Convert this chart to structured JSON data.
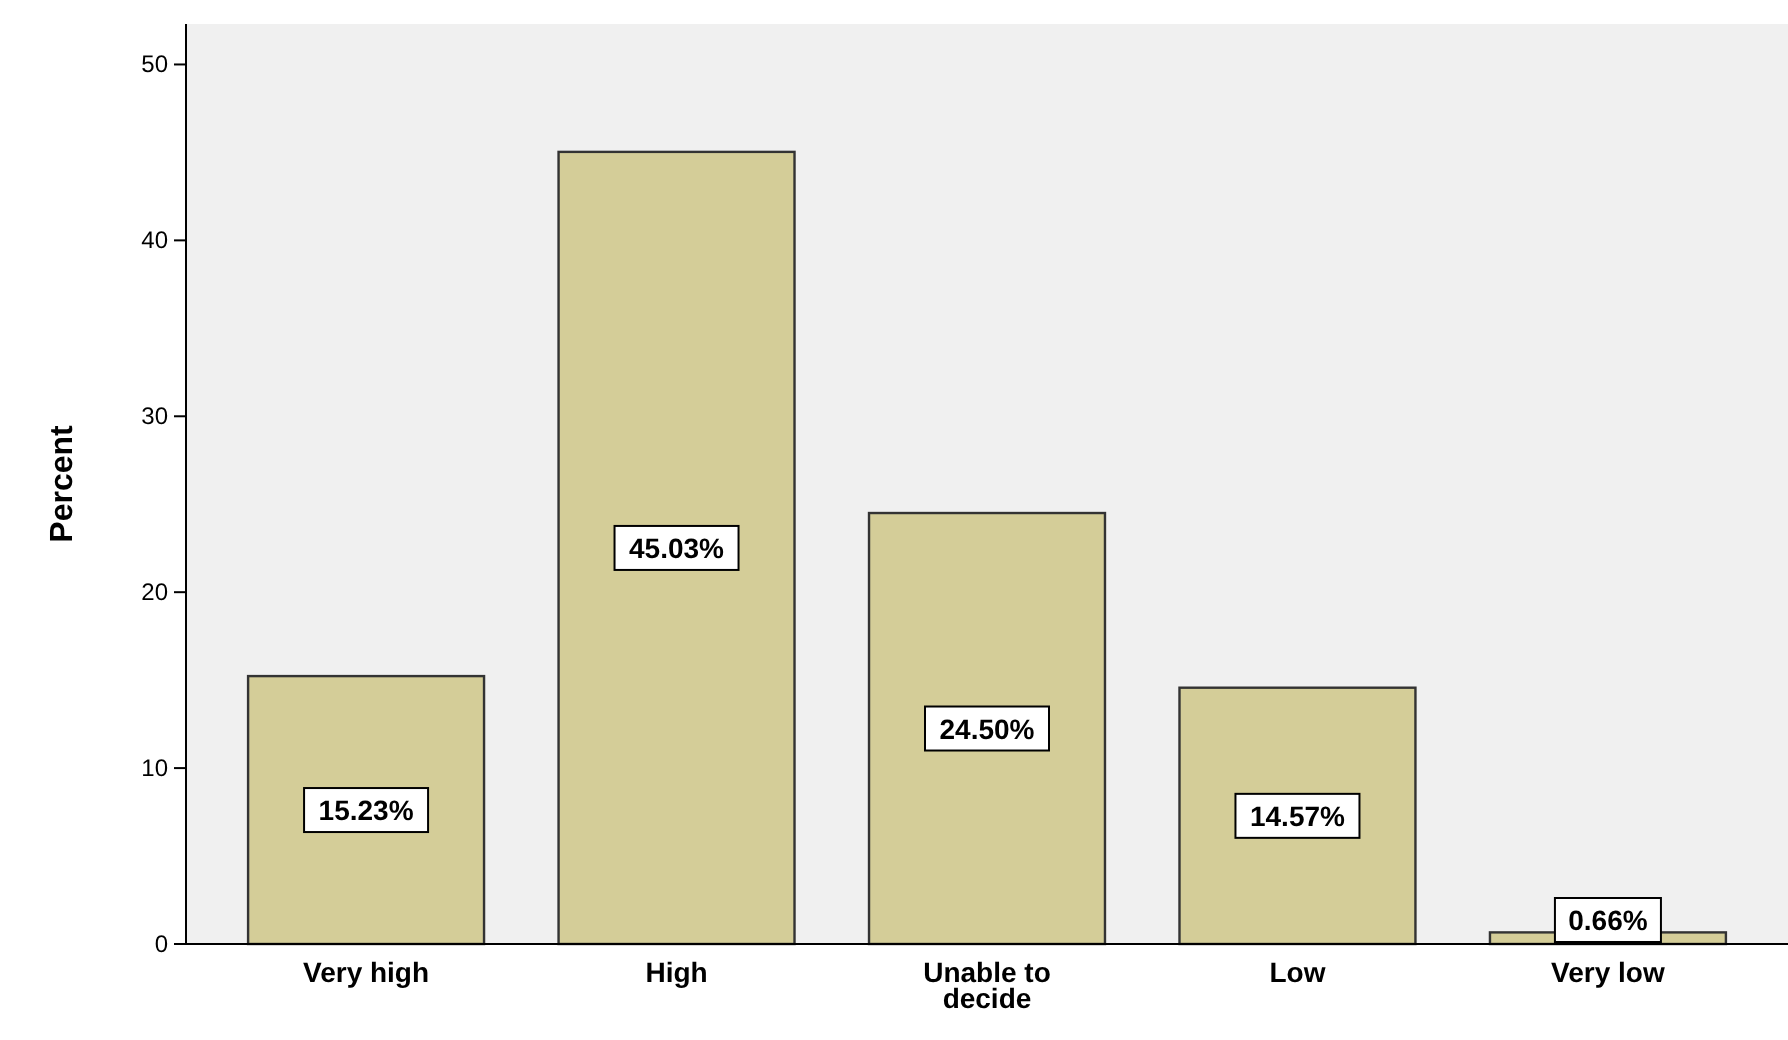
{
  "chart_data": {
    "type": "bar",
    "ylabel": "Percent",
    "categories": [
      "Very high",
      "High",
      "Unable to decide",
      "Low",
      "Very low"
    ],
    "values": [
      15.23,
      45.03,
      24.5,
      14.57,
      0.66
    ],
    "value_labels": [
      "15.23%",
      "45.03%",
      "24.50%",
      "14.57%",
      "0.66%"
    ],
    "color": "#d4cd98",
    "ylim": [
      0,
      52.3
    ],
    "yticks": [
      0,
      10,
      20,
      30,
      40,
      50
    ],
    "grid": false
  }
}
